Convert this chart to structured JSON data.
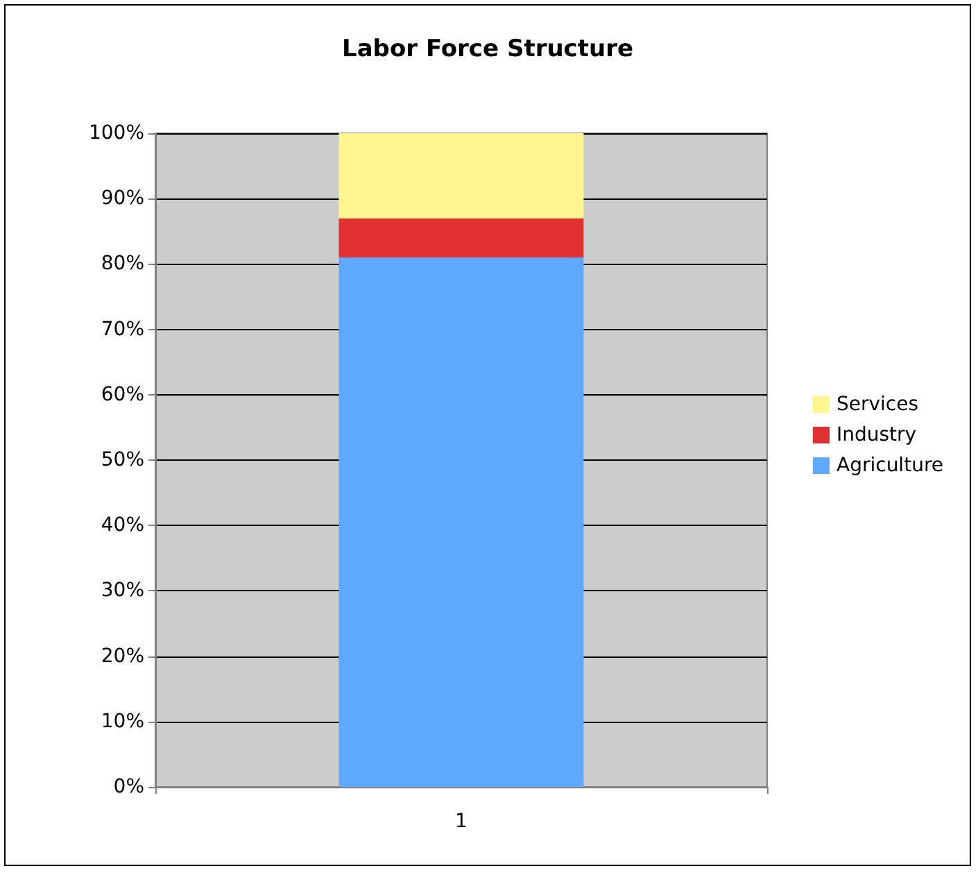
{
  "chart_data": {
    "type": "bar",
    "title": "Labor Force Structure",
    "categories": [
      "1"
    ],
    "stacked": true,
    "series": [
      {
        "name": "Agriculture",
        "color": "#5fa8ff",
        "values": [
          81
        ]
      },
      {
        "name": "Industry",
        "color": "#e03030",
        "values": [
          6
        ]
      },
      {
        "name": "Services",
        "color": "#fff68f",
        "values": [
          13
        ]
      }
    ],
    "ylim": [
      0,
      100
    ],
    "yticks": [
      {
        "value": 0,
        "label": "0%"
      },
      {
        "value": 10,
        "label": "10%"
      },
      {
        "value": 20,
        "label": "20%"
      },
      {
        "value": 30,
        "label": "30%"
      },
      {
        "value": 40,
        "label": "40%"
      },
      {
        "value": 50,
        "label": "50%"
      },
      {
        "value": 60,
        "label": "60%"
      },
      {
        "value": 70,
        "label": "70%"
      },
      {
        "value": 80,
        "label": "80%"
      },
      {
        "value": 90,
        "label": "90%"
      },
      {
        "value": 100,
        "label": "100%"
      }
    ],
    "grid": "y",
    "legend": "right"
  }
}
